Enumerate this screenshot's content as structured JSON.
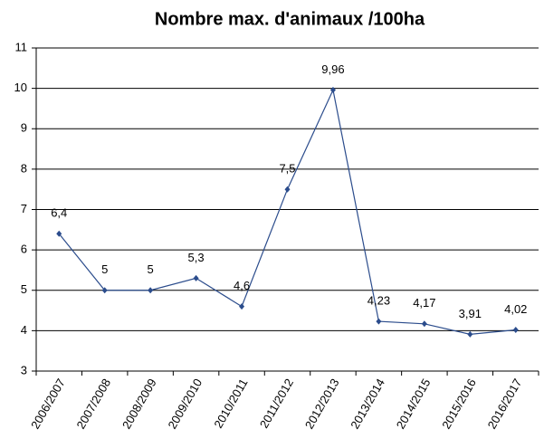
{
  "chart_data": {
    "type": "line",
    "title": "Nombre max. d'animaux /100ha",
    "categories": [
      "2006/2007",
      "2007/2008",
      "2008/2009",
      "2009/2010",
      "2010/2011",
      "2011/2012",
      "2012/2013",
      "2013/2014",
      "2014/2015",
      "2015/2016",
      "2016/2017"
    ],
    "series": [
      {
        "name": null,
        "color": "#2b4c8c",
        "values": [
          6.4,
          5,
          5,
          5.3,
          4.6,
          7.5,
          9.96,
          4.23,
          4.17,
          3.91,
          4.02
        ],
        "value_labels": [
          "6,4",
          "5",
          "5",
          "5,3",
          "4,6",
          "7,5",
          "9,96",
          "4,23",
          "4,17",
          "3,91",
          "4,02"
        ]
      }
    ],
    "ylim": [
      3,
      11
    ],
    "yticks": [
      3,
      4,
      5,
      6,
      7,
      8,
      9,
      10,
      11
    ],
    "grid": true
  }
}
